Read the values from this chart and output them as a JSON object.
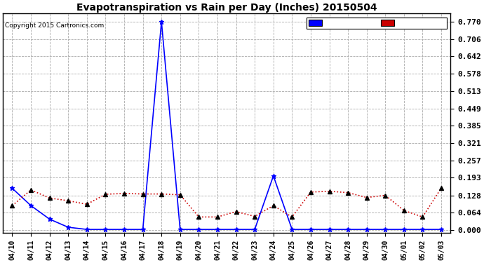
{
  "title": "Evapotranspiration vs Rain per Day (Inches) 20150504",
  "copyright": "Copyright 2015 Cartronics.com",
  "yticks": [
    0.0,
    0.064,
    0.128,
    0.193,
    0.257,
    0.321,
    0.385,
    0.449,
    0.513,
    0.578,
    0.642,
    0.706,
    0.77
  ],
  "dates": [
    "04/10",
    "04/11",
    "04/12",
    "04/13",
    "04/14",
    "04/15",
    "04/16",
    "04/17",
    "04/18",
    "04/19",
    "04/20",
    "04/21",
    "04/22",
    "04/23",
    "04/24",
    "04/25",
    "04/26",
    "04/27",
    "04/28",
    "04/29",
    "04/30",
    "05/01",
    "05/02",
    "05/03"
  ],
  "rain": [
    0.154,
    0.09,
    0.04,
    0.01,
    0.002,
    0.002,
    0.002,
    0.002,
    0.77,
    0.002,
    0.002,
    0.002,
    0.002,
    0.002,
    0.2,
    0.002,
    0.002,
    0.002,
    0.002,
    0.002,
    0.002,
    0.002,
    0.002,
    0.002
  ],
  "et": [
    0.09,
    0.148,
    0.118,
    0.108,
    0.095,
    0.132,
    0.135,
    0.133,
    0.133,
    0.13,
    0.048,
    0.048,
    0.068,
    0.05,
    0.09,
    0.048,
    0.14,
    0.143,
    0.138,
    0.12,
    0.128,
    0.072,
    0.048,
    0.155
  ],
  "rain_color": "#0000FF",
  "et_color": "#CC0000",
  "bg_color": "#FFFFFF",
  "grid_color": "#AAAAAA"
}
